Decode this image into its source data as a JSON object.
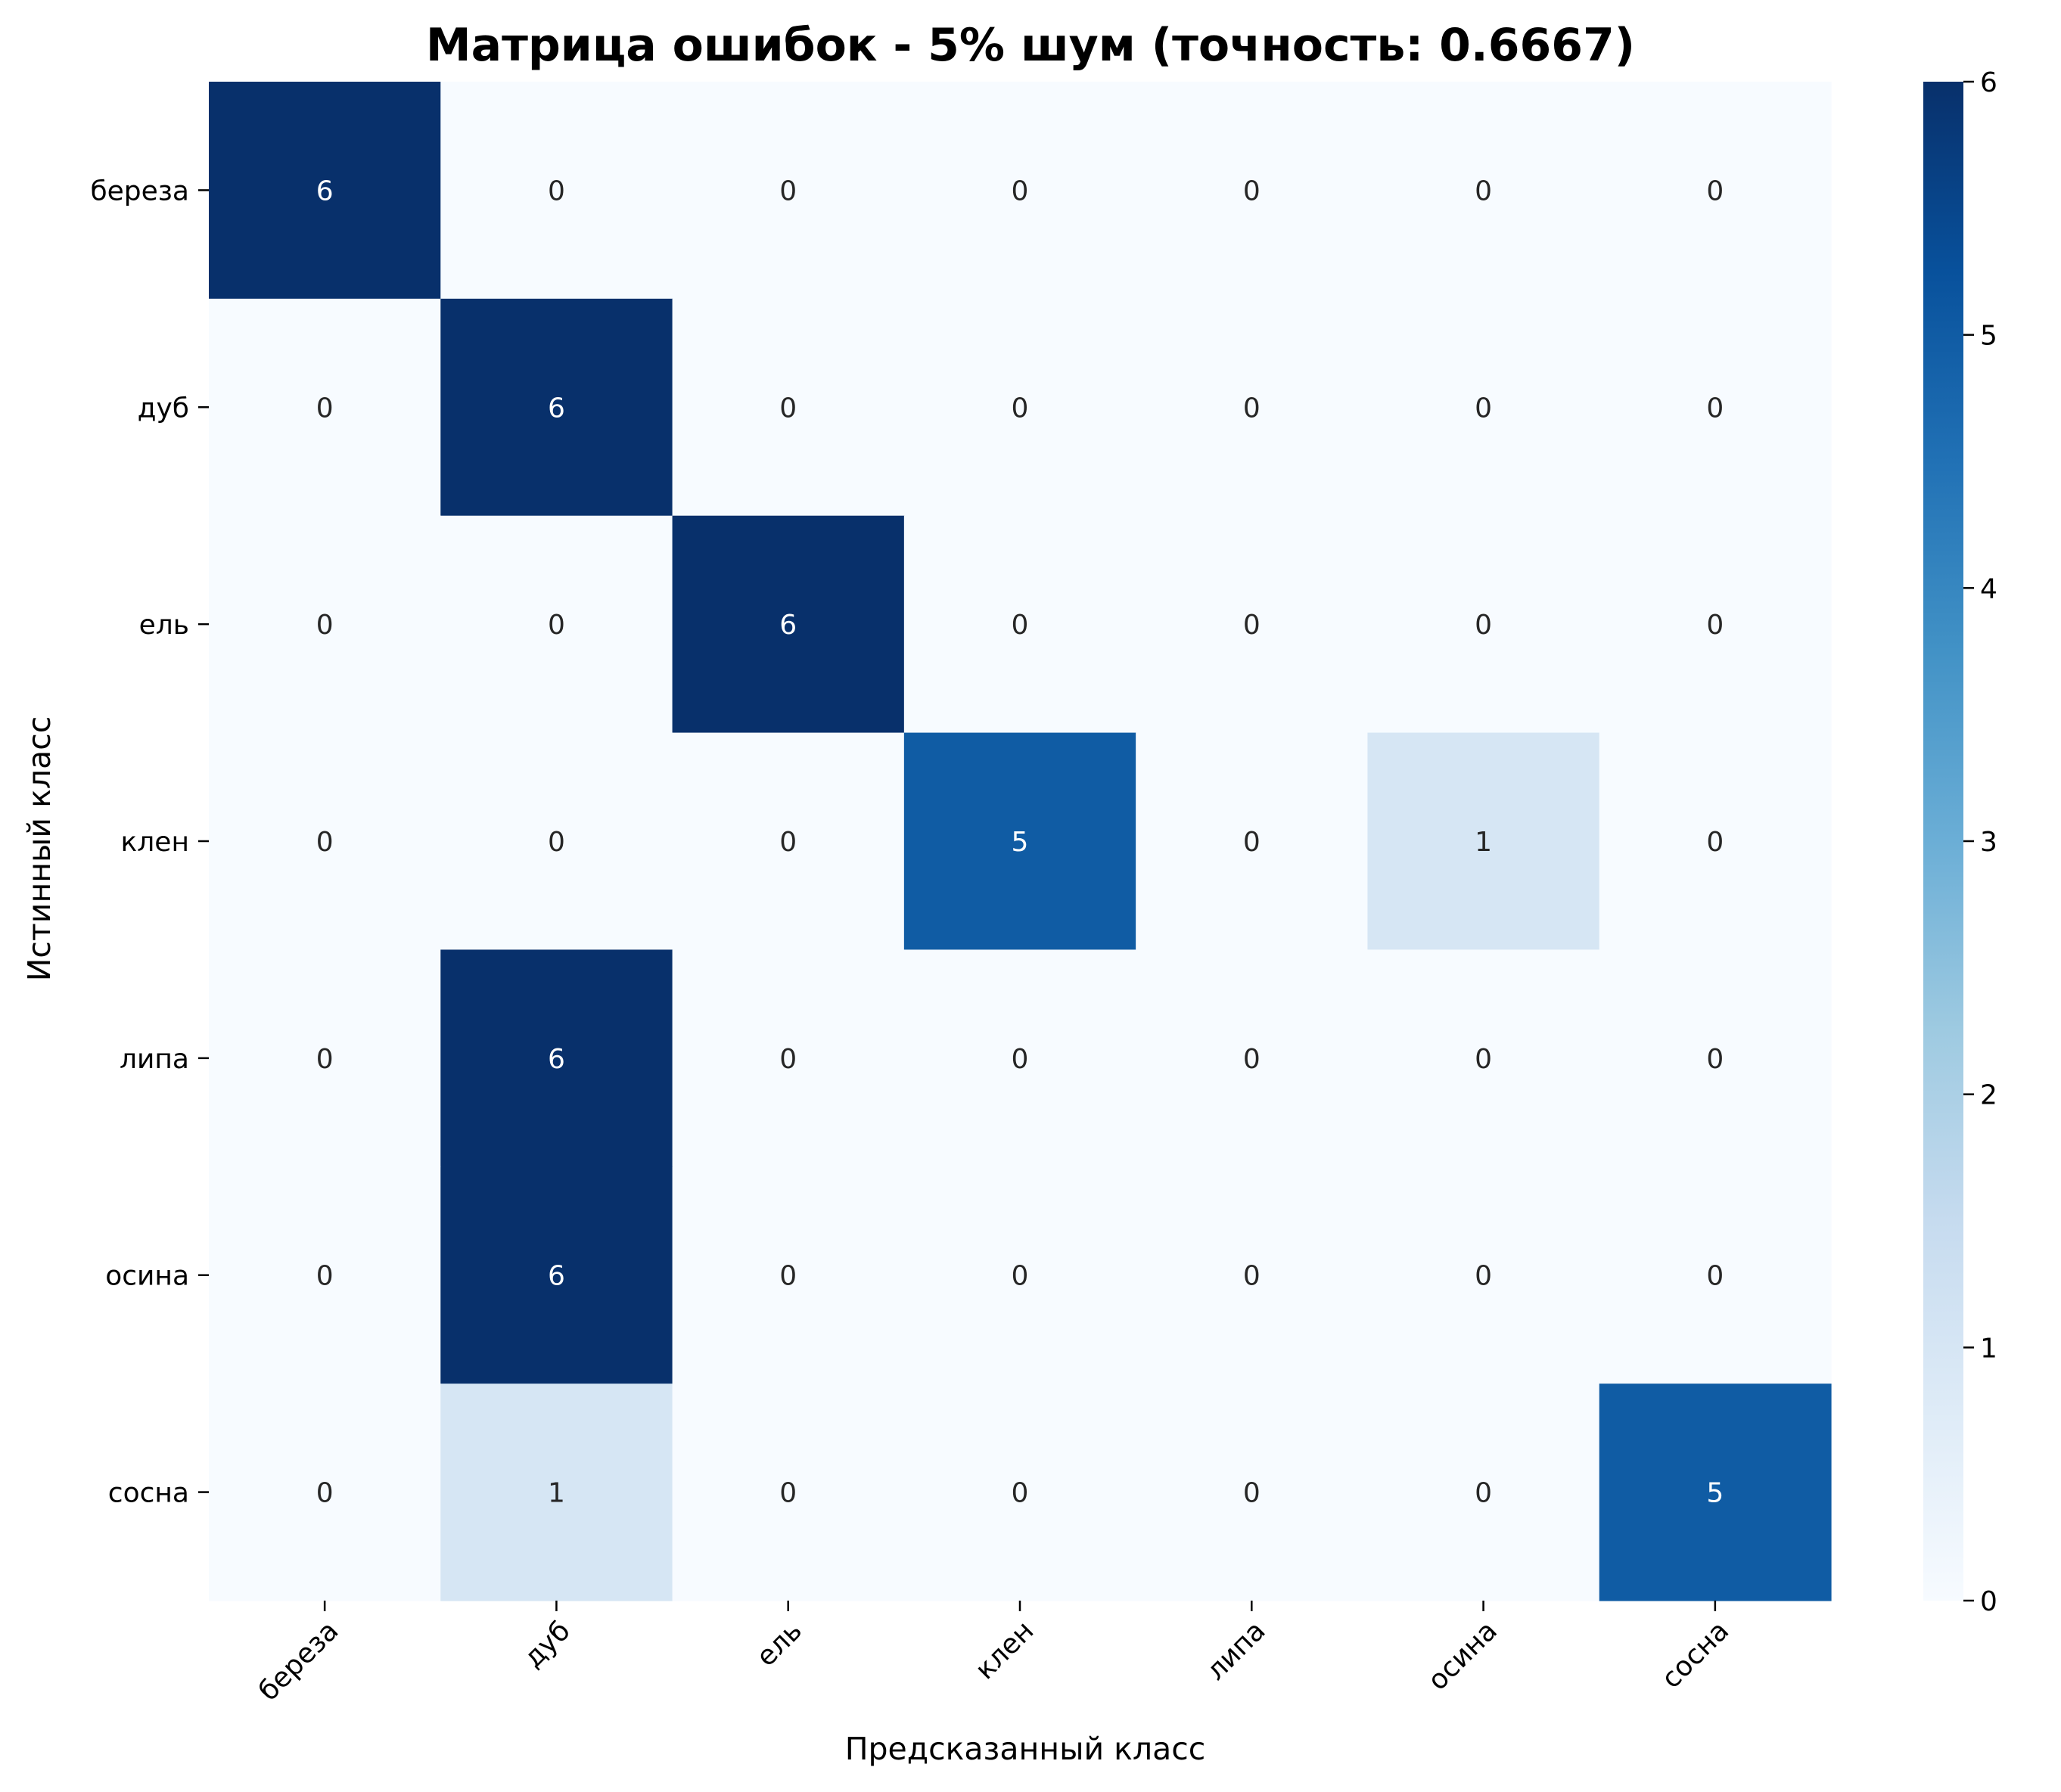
{
  "chart_data": {
    "type": "heatmap",
    "title": "Матрица ошибок - 5% шум (точность: 0.6667)",
    "xlabel": "Предсказанный класс",
    "ylabel": "Истинный класс",
    "x_categories": [
      "береза",
      "дуб",
      "ель",
      "клен",
      "липа",
      "осина",
      "сосна"
    ],
    "y_categories": [
      "береза",
      "дуб",
      "ель",
      "клен",
      "липа",
      "осина",
      "сосна"
    ],
    "values": [
      [
        6,
        0,
        0,
        0,
        0,
        0,
        0
      ],
      [
        0,
        6,
        0,
        0,
        0,
        0,
        0
      ],
      [
        0,
        0,
        6,
        0,
        0,
        0,
        0
      ],
      [
        0,
        0,
        0,
        5,
        0,
        1,
        0
      ],
      [
        0,
        6,
        0,
        0,
        0,
        0,
        0
      ],
      [
        0,
        6,
        0,
        0,
        0,
        0,
        0
      ],
      [
        0,
        1,
        0,
        0,
        0,
        0,
        5
      ]
    ],
    "colormap": "Blues",
    "color_range": [
      0,
      6
    ],
    "colorbar_ticks": [
      "0",
      "1",
      "2",
      "3",
      "4",
      "5",
      "6"
    ],
    "colors": {
      "low": "#f7fbff",
      "high": "#08306b"
    },
    "annotations": true,
    "grid": false,
    "legend": "colorbar-right"
  }
}
